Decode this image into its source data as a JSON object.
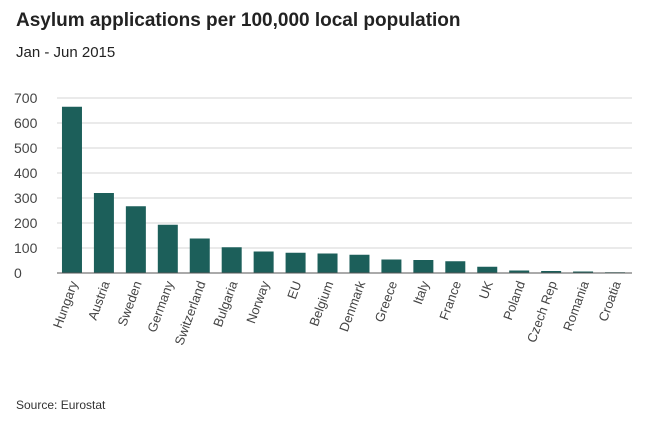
{
  "header": {
    "title": "Asylum applications per 100,000 local population",
    "subtitle": "Jan - Jun 2015"
  },
  "footer": {
    "source": "Source: Eurostat"
  },
  "colors": {
    "bar": "#1c5f5a",
    "grid": "#d6d6d6",
    "axis": "#555555"
  },
  "chart_data": {
    "type": "bar",
    "title": "Asylum applications per 100,000 local population",
    "subtitle": "Jan - Jun 2015",
    "xlabel": "",
    "ylabel": "",
    "ylim": [
      0,
      700
    ],
    "yticks": [
      0,
      100,
      200,
      300,
      400,
      500,
      600,
      700
    ],
    "grid": true,
    "categories": [
      "Hungary",
      "Austria",
      "Sweden",
      "Germany",
      "Switzerland",
      "Bulgaria",
      "Norway",
      "EU",
      "Belgium",
      "Denmark",
      "Greece",
      "Italy",
      "France",
      "UK",
      "Poland",
      "Czech Rep",
      "Romania",
      "Croatia"
    ],
    "values": [
      665,
      320,
      267,
      193,
      138,
      103,
      86,
      81,
      78,
      73,
      54,
      52,
      47,
      25,
      10,
      8,
      6,
      3
    ]
  }
}
